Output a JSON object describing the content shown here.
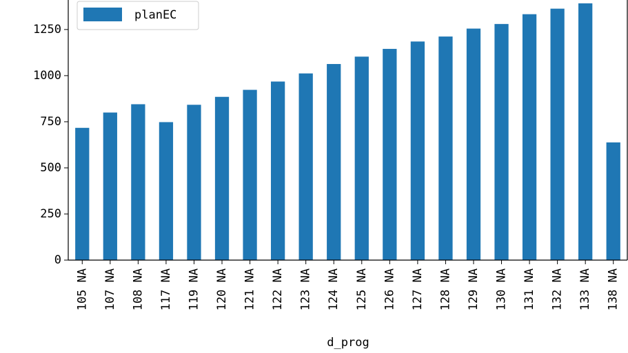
{
  "chart_data": {
    "type": "bar",
    "categories": [
      "105 NA",
      "107 NA",
      "108 NA",
      "117 NA",
      "119 NA",
      "120 NA",
      "121 NA",
      "122 NA",
      "123 NA",
      "124 NA",
      "125 NA",
      "126 NA",
      "127 NA",
      "128 NA",
      "129 NA",
      "130 NA",
      "131 NA",
      "132 NA",
      "133 NA",
      "138 NA"
    ],
    "series": [
      {
        "name": "planEC",
        "color": "#1f77b4",
        "values": [
          717,
          800,
          845,
          748,
          842,
          885,
          923,
          968,
          1012,
          1063,
          1103,
          1145,
          1185,
          1212,
          1255,
          1280,
          1333,
          1363,
          1392,
          638
        ]
      }
    ],
    "xlabel": "d_prog",
    "ylabel": "",
    "yticks": [
      0,
      250,
      500,
      750,
      1000,
      1250
    ],
    "ylim": [
      0,
      1410
    ],
    "legend": {
      "position": "top-left",
      "label": "planEC"
    }
  }
}
